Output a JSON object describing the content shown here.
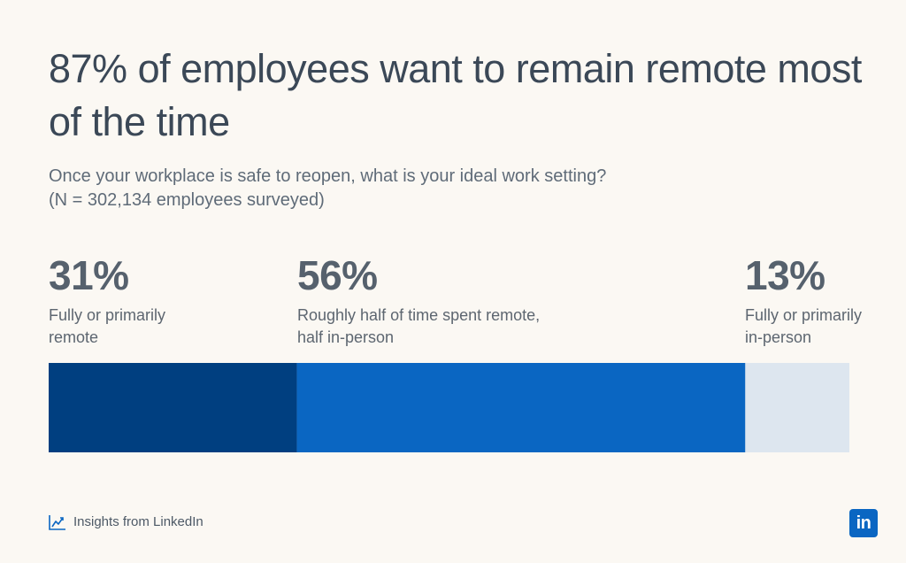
{
  "title": "87% of employees want to remain remote most of the time",
  "subtitle_line1": "Once your workplace is safe to reopen, what is your ideal work setting?",
  "subtitle_line2": "(N = 302,134 employees surveyed)",
  "stats": [
    {
      "value": "31%",
      "label_line1": "Fully or primarily",
      "label_line2": "remote"
    },
    {
      "value": "56%",
      "label_line1": "Roughly half of time spent remote,",
      "label_line2": "half in-person"
    },
    {
      "value": "13%",
      "label_line1": "Fully or primarily",
      "label_line2": "in-person"
    }
  ],
  "chart_data": {
    "type": "bar",
    "title": "87% of employees want to remain remote most of the time",
    "subtitle": "Once your workplace is safe to reopen, what is your ideal work setting? (N = 302,134 employees surveyed)",
    "categories": [
      "Fully or primarily remote",
      "Roughly half of time spent remote, half in-person",
      "Fully or primarily in-person"
    ],
    "values": [
      31,
      56,
      13
    ],
    "unit": "%",
    "stacked": true,
    "orientation": "horizontal",
    "colors": [
      "#003f80",
      "#0a66c2",
      "#dde6ef"
    ],
    "xlabel": "",
    "ylabel": "",
    "grid": false
  },
  "footer": {
    "icon": "trend-chart-icon",
    "text": "Insights from LinkedIn"
  },
  "logo": {
    "text": "in",
    "color": "#0a66c2"
  }
}
